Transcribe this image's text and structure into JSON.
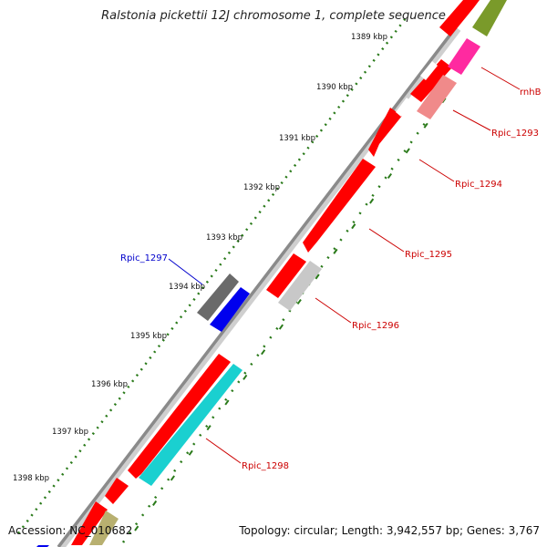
{
  "header": {
    "title": "Ralstonia pickettii 12J chromosome 1, complete sequence"
  },
  "footer": {
    "accession": "Accession: NC_010682",
    "summary": "Topology: circular; Length: 3,942,557 bp; Genes: 3,767"
  },
  "kbp_labels": [
    "1389 kbp",
    "1390 kbp",
    "1391 kbp",
    "1392 kbp",
    "1393 kbp",
    "1394 kbp",
    "1395 kbp",
    "1396 kbp",
    "1397 kbp",
    "1398 kbp"
  ],
  "gene_labels": [
    {
      "name": "rnhB",
      "color": "#cc0000"
    },
    {
      "name": "Rpic_1293",
      "color": "#cc0000"
    },
    {
      "name": "Rpic_1294",
      "color": "#cc0000"
    },
    {
      "name": "Rpic_1295",
      "color": "#cc0000"
    },
    {
      "name": "Rpic_1296",
      "color": "#cc0000"
    },
    {
      "name": "Rpic_1297",
      "color": "#0000cc"
    },
    {
      "name": "Rpic_1298",
      "color": "#cc0000"
    }
  ],
  "colors": {
    "backbone": "#8a8a8a",
    "tick_dots": "#2a7a1a",
    "cds_red": "#ff0000",
    "pink": "#ff2aa0",
    "salmon": "#f08a8a",
    "olive": "#7a9a2a",
    "gray_gene": "#6a6a6a",
    "silver_gene": "#c8c8c8",
    "blue_gene": "#0000ee",
    "cyan_gene": "#1ad0d0",
    "khaki_gene": "#b8b070"
  }
}
